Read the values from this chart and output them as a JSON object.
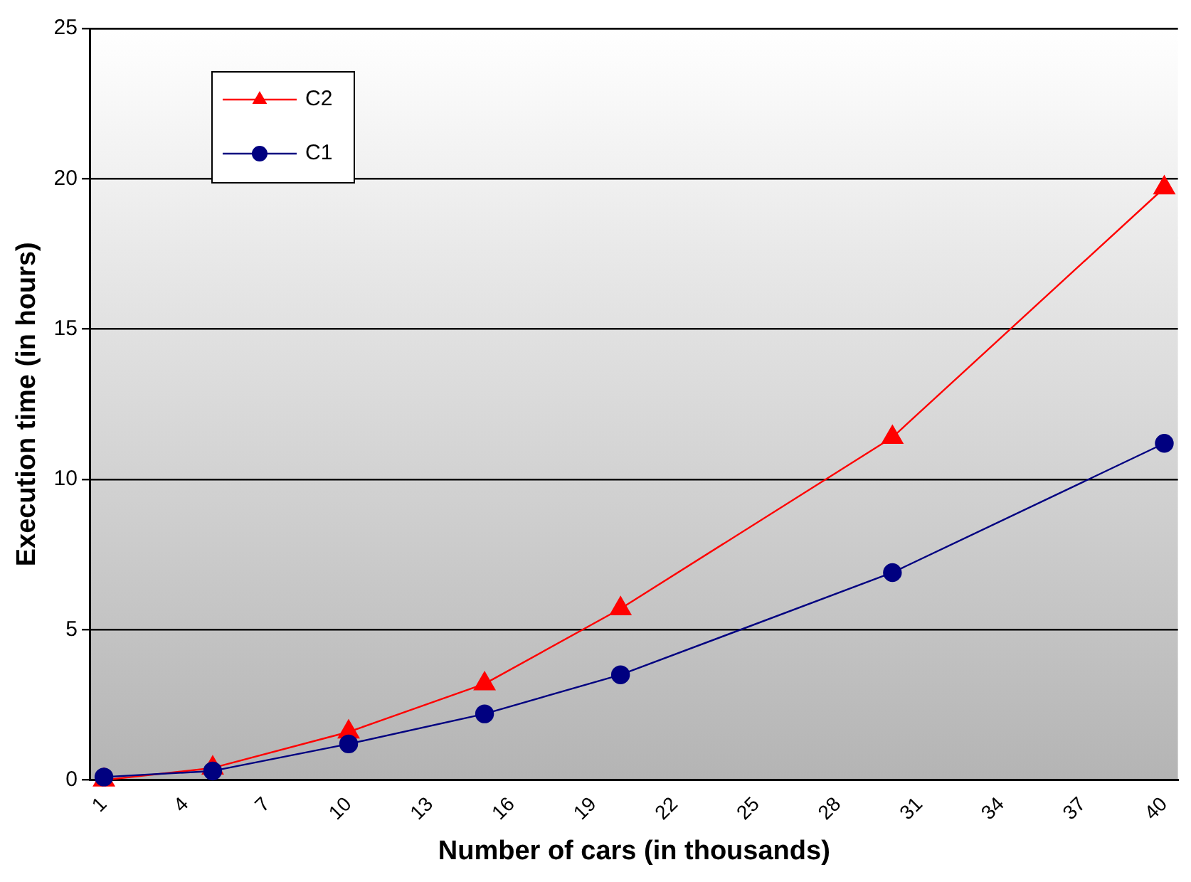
{
  "chart_data": {
    "type": "line",
    "xlabel": "Number of cars (in thousands)",
    "ylabel": "Execution time (in hours)",
    "x": [
      1,
      5,
      10,
      15,
      20,
      30,
      40
    ],
    "series": [
      {
        "name": "C2",
        "color": "#ff0000",
        "marker": "triangle",
        "values": [
          0,
          0.4,
          1.6,
          3.2,
          5.7,
          11.4,
          19.7
        ]
      },
      {
        "name": "C1",
        "color": "#000080",
        "marker": "circle",
        "values": [
          0.1,
          0.3,
          1.2,
          2.2,
          3.5,
          6.9,
          11.2
        ]
      }
    ],
    "xlim": [
      0.5,
      40.5
    ],
    "xticks": [
      1,
      4,
      7,
      10,
      13,
      16,
      19,
      22,
      25,
      28,
      31,
      34,
      37,
      40
    ],
    "ylim": [
      0,
      25
    ],
    "yticks": [
      0,
      5,
      10,
      15,
      20,
      25
    ],
    "grid": "y",
    "legend": "top left",
    "line_style": "solid"
  }
}
